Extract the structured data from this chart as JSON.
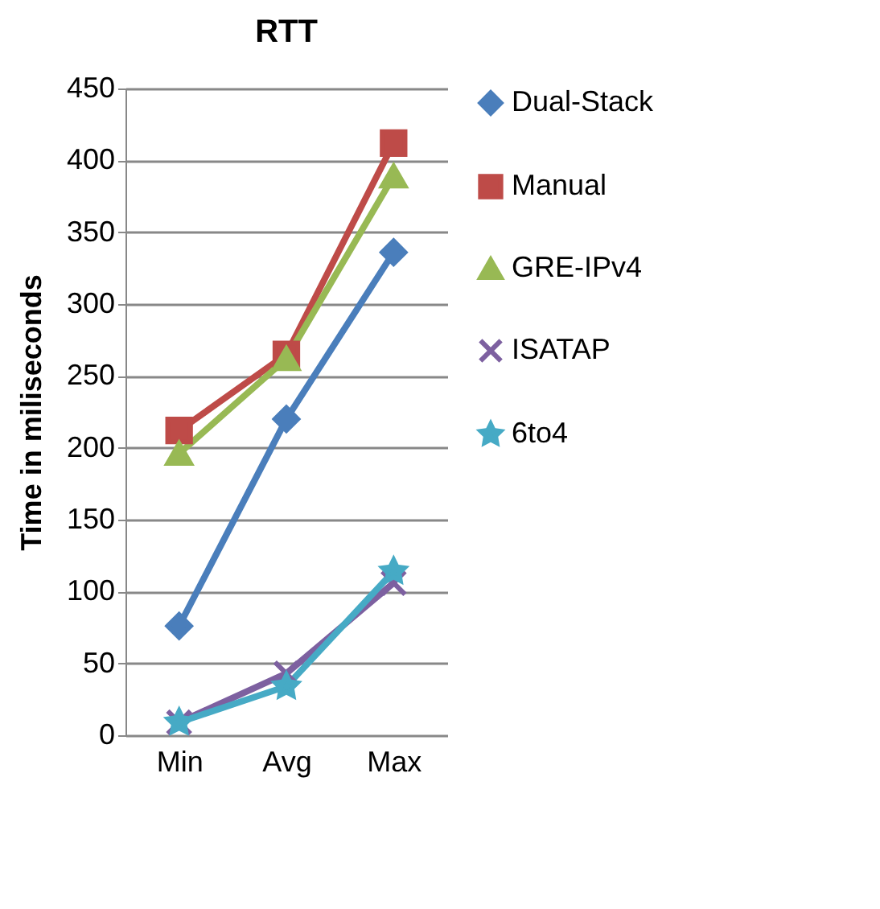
{
  "chart_data": {
    "type": "line",
    "title": "RTT",
    "ylabel": "Time in miliseconds",
    "categories": [
      "Min",
      "Avg",
      "Max"
    ],
    "series": [
      {
        "name": "Dual-Stack",
        "color": "#4a7ebb",
        "marker": "diamond",
        "values": [
          76,
          220,
          336
        ]
      },
      {
        "name": "Manual",
        "color": "#be4b48",
        "marker": "square",
        "values": [
          212,
          265,
          412
        ]
      },
      {
        "name": "GRE-IPv4",
        "color": "#98b954",
        "marker": "triangle",
        "values": [
          196,
          262,
          389
        ]
      },
      {
        "name": "ISATAP",
        "color": "#7d60a0",
        "marker": "cross",
        "values": [
          9,
          43,
          106
        ]
      },
      {
        "name": "6to4",
        "color": "#46aac5",
        "marker": "star",
        "values": [
          9,
          34,
          114
        ]
      }
    ],
    "ylim": [
      0,
      450
    ],
    "yticks": [
      0,
      50,
      100,
      150,
      200,
      250,
      300,
      350,
      400,
      450
    ],
    "grid": "y",
    "legend": "right",
    "line_style": "solid"
  }
}
